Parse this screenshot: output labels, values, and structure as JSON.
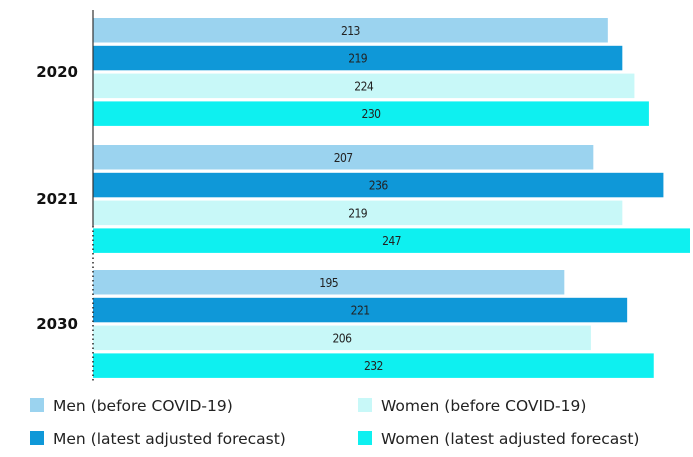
{
  "chart_data": {
    "type": "bar",
    "orientation": "horizontal",
    "categories": [
      "2020",
      "2021",
      "2030"
    ],
    "series": [
      {
        "name": "Men (before COVID-19)",
        "color": "#9bd3ef",
        "values": [
          213,
          207,
          195
        ]
      },
      {
        "name": "Men (latest adjusted forecast)",
        "color": "#0f98d8",
        "values": [
          219,
          236,
          221
        ]
      },
      {
        "name": "Women (before COVID-19)",
        "color": "#c8f8f8",
        "values": [
          224,
          219,
          206
        ]
      },
      {
        "name": "Women (latest adjusted forecast)",
        "color": "#0ef0f0",
        "values": [
          230,
          247,
          232
        ]
      }
    ],
    "title": "",
    "xlabel": "",
    "ylabel": "",
    "xlim": [
      0,
      247
    ],
    "grid": false,
    "legend_position": "bottom"
  }
}
